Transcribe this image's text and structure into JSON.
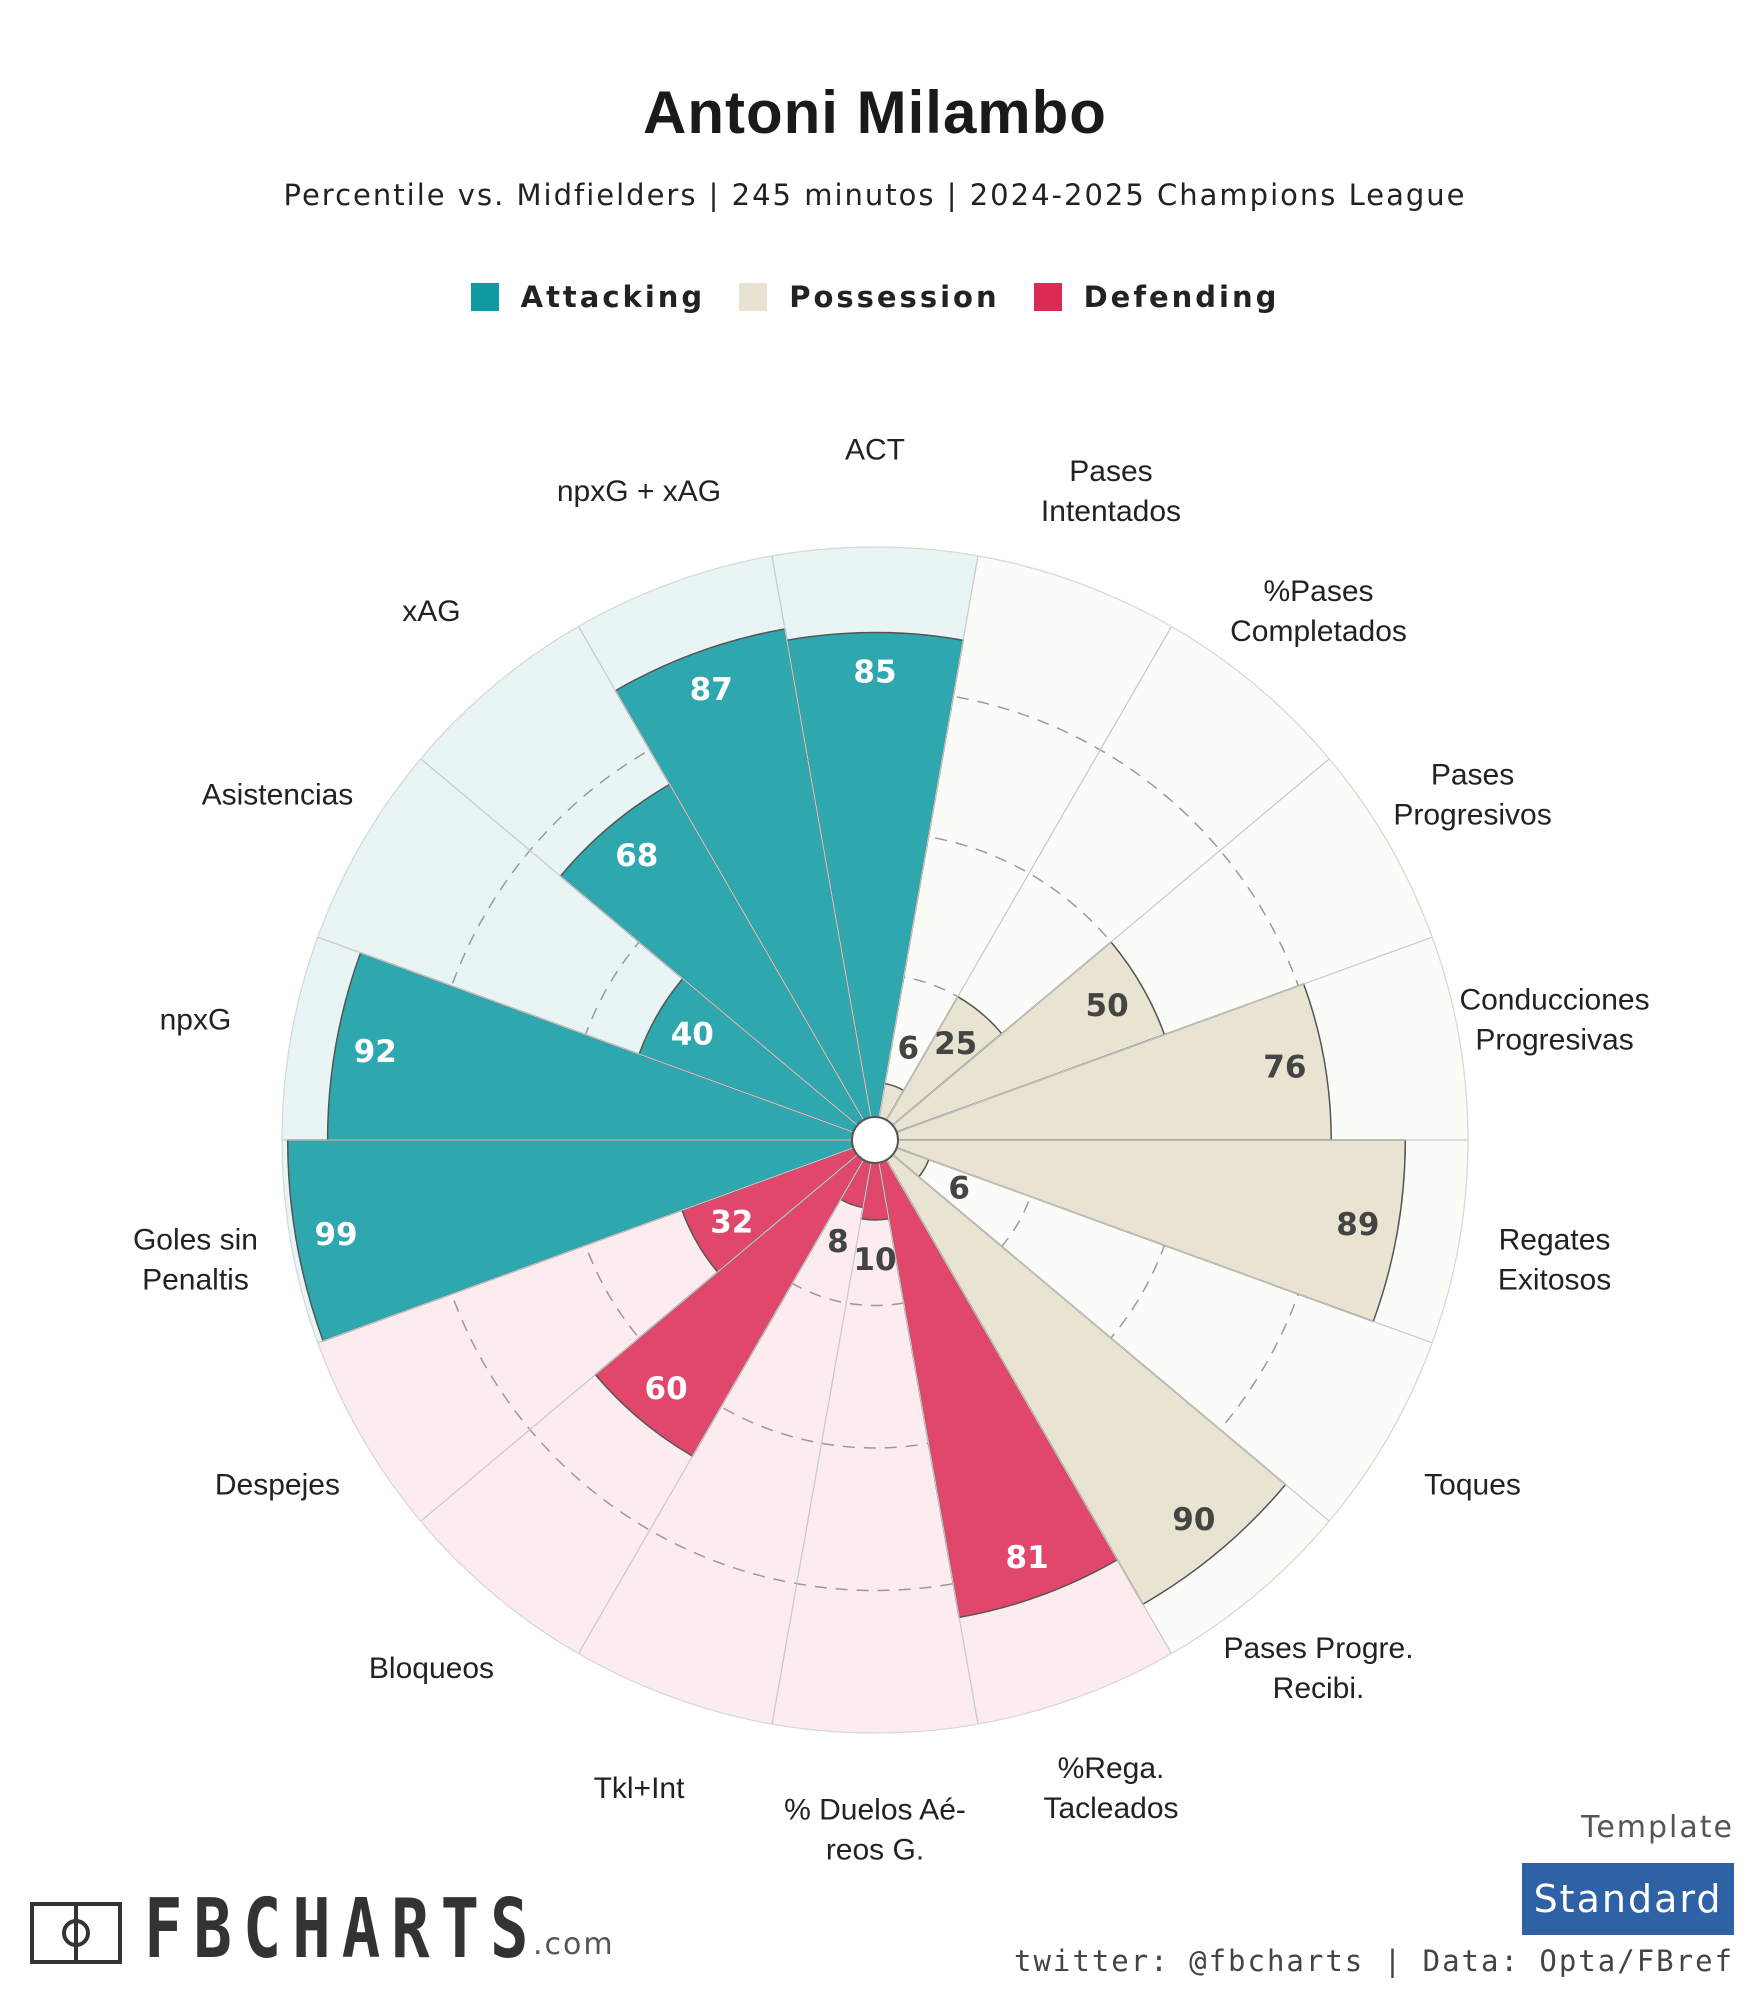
{
  "title": "Antoni Milambo",
  "subtitle": "Percentile vs. Midfielders | 245 minutos | 2024-2025 Champions League",
  "legend": [
    {
      "label": "Attacking",
      "color": "#0e9aa0"
    },
    {
      "label": "Possession",
      "color": "#e8e2d0"
    },
    {
      "label": "Defending",
      "color": "#dc2a55"
    }
  ],
  "chart_data": {
    "type": "radial-bar",
    "range": [
      0,
      100
    ],
    "categories": [
      {
        "name": "ACT",
        "label_lines": [
          "ACT"
        ],
        "value": 85,
        "group": "Attacking"
      },
      {
        "name": "Pases Intentados",
        "label_lines": [
          "Pases",
          "Intentados"
        ],
        "value": 6,
        "group": "Possession"
      },
      {
        "name": "%Pases Completados",
        "label_lines": [
          "%Pases",
          "Completados"
        ],
        "value": 25,
        "group": "Possession"
      },
      {
        "name": "Pases Progresivos",
        "label_lines": [
          "Pases",
          "Progresivos"
        ],
        "value": 50,
        "group": "Possession"
      },
      {
        "name": "Conducciones Progresivas",
        "label_lines": [
          "Conducciones",
          "Progresivas"
        ],
        "value": 76,
        "group": "Possession"
      },
      {
        "name": "Regates Exitosos",
        "label_lines": [
          "Regates",
          "Exitosos"
        ],
        "value": 89,
        "group": "Possession"
      },
      {
        "name": "Toques",
        "label_lines": [
          "Toques"
        ],
        "value": 6,
        "group": "Possession"
      },
      {
        "name": "Pases Progre. Recibi.",
        "label_lines": [
          "Pases Progre.",
          "Recibi."
        ],
        "value": 90,
        "group": "Possession"
      },
      {
        "name": "%Rega. Tacleados",
        "label_lines": [
          "%Rega.",
          "Tacleados"
        ],
        "value": 81,
        "group": "Defending"
      },
      {
        "name": "% Duelos Aéreos G.",
        "label_lines": [
          "% Duelos Aé-",
          "reos G."
        ],
        "value": 10,
        "group": "Defending"
      },
      {
        "name": "Tkl+Int",
        "label_lines": [
          "Tkl+Int"
        ],
        "value": 8,
        "group": "Defending"
      },
      {
        "name": "Bloqueos",
        "label_lines": [
          "Bloqueos"
        ],
        "value": 60,
        "group": "Defending"
      },
      {
        "name": "Despejes",
        "label_lines": [
          "Despejes"
        ],
        "value": 32,
        "group": "Defending"
      },
      {
        "name": "Goles sin Penaltis",
        "label_lines": [
          "Goles sin",
          "Penaltis"
        ],
        "value": 99,
        "group": "Attacking"
      },
      {
        "name": "npxG",
        "label_lines": [
          "npxG"
        ],
        "value": 92,
        "group": "Attacking"
      },
      {
        "name": "Asistencias",
        "label_lines": [
          "Asistencias"
        ],
        "value": 40,
        "group": "Attacking"
      },
      {
        "name": "xAG",
        "label_lines": [
          "xAG"
        ],
        "value": 68,
        "group": "Attacking"
      },
      {
        "name": "npxG + xAG",
        "label_lines": [
          "npxG + xAG"
        ],
        "value": 87,
        "group": "Attacking"
      }
    ],
    "colors": {
      "Attacking": {
        "bar": "#2fa7ae",
        "bg": "#e9f5f5"
      },
      "Possession": {
        "bar": "#e9e3d1",
        "bg": "#fbfbf8"
      },
      "Defending": {
        "bar": "#e0476b",
        "bg": "#fcecf0"
      }
    }
  },
  "template": {
    "label": "Template",
    "name": "Standard"
  },
  "credits": "twitter: @fbcharts | Data: Opta/FBref",
  "brand": {
    "name": "FBCHARTS",
    "suffix": ".com"
  }
}
